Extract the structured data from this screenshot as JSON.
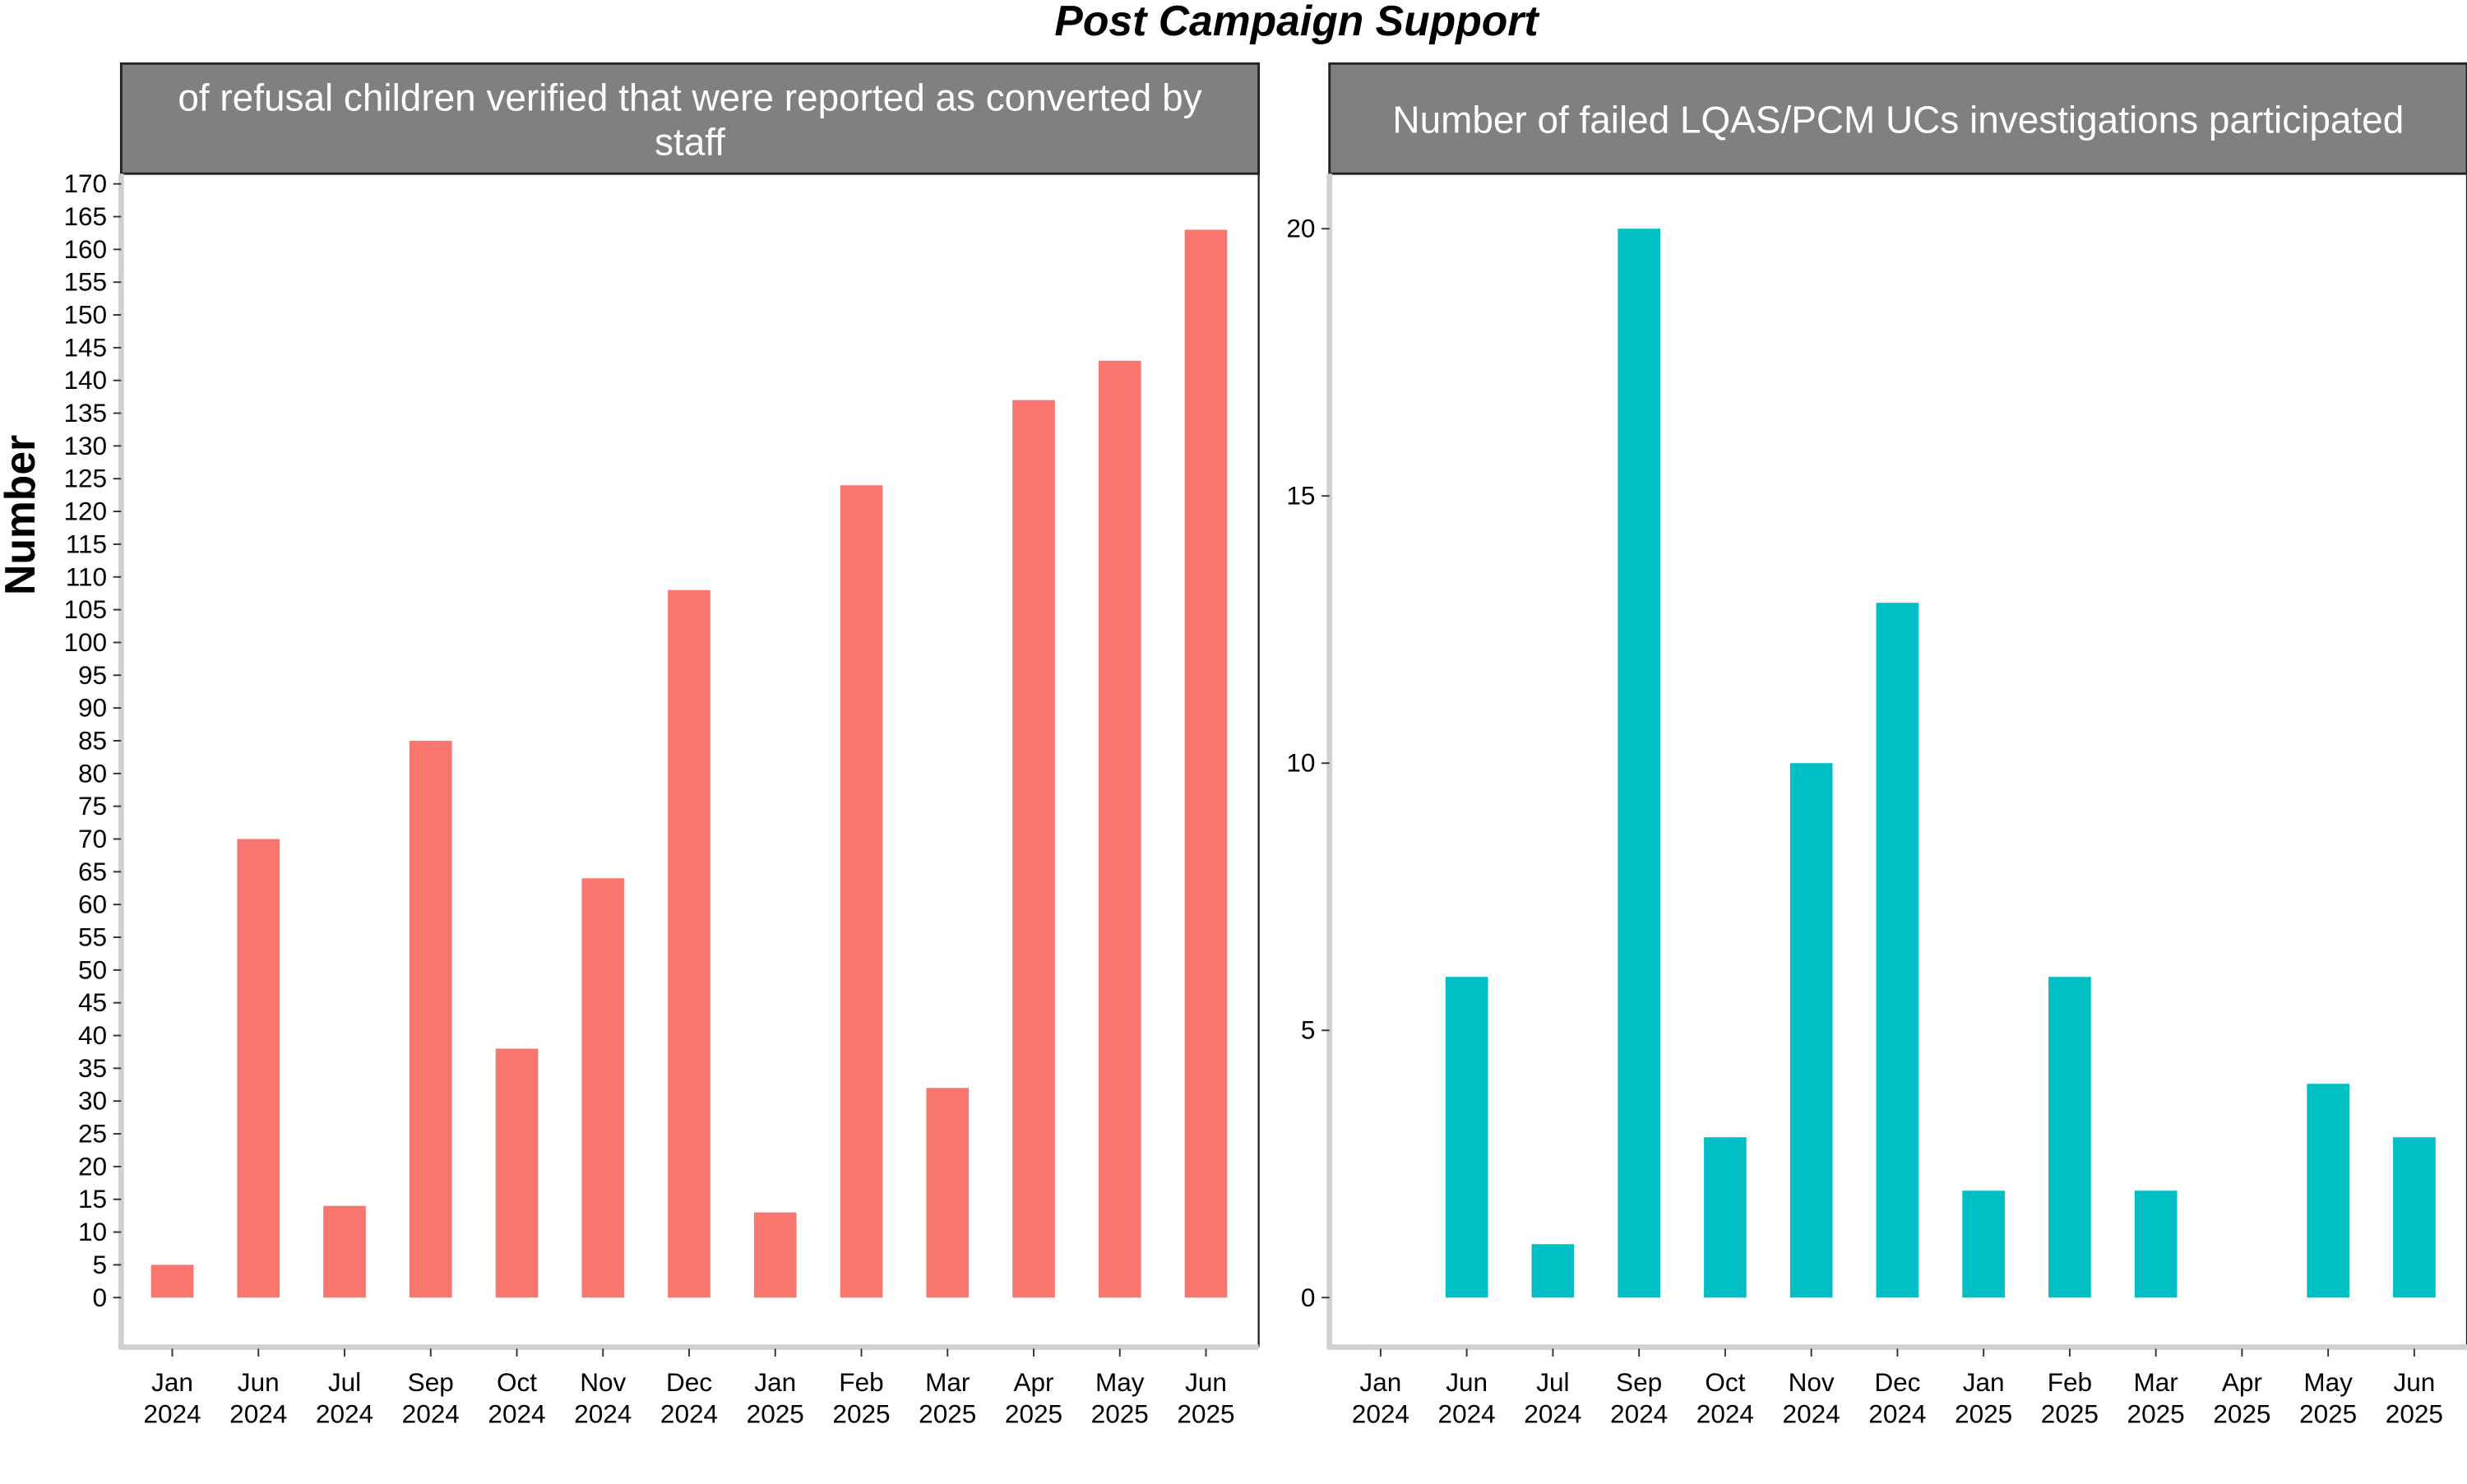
{
  "title": "Post Campaign Support",
  "ylabel": "Number",
  "colors": {
    "left_bars": "#F8766D",
    "right_bars": "#00BFC4",
    "strip_fill": "#808080",
    "strip_text": "#ffffff",
    "axis": "#d0d0d0"
  },
  "chart_data": [
    {
      "type": "bar",
      "panel_title": "of refusal children verified that were reported as converted by staff",
      "panel_title_lines": [
        "of refusal children verified that were reported as converted by",
        "staff"
      ],
      "categories": [
        "Jan 2024",
        "Jun 2024",
        "Jul 2024",
        "Sep 2024",
        "Oct 2024",
        "Nov 2024",
        "Dec 2024",
        "Jan 2025",
        "Feb 2025",
        "Mar 2025",
        "Apr 2025",
        "May 2025",
        "Jun 2025"
      ],
      "values": [
        5,
        70,
        14,
        85,
        38,
        64,
        108,
        13,
        124,
        32,
        137,
        143,
        163
      ],
      "ylim": [
        0,
        170
      ],
      "yticks": [
        0,
        5,
        10,
        15,
        20,
        25,
        30,
        35,
        40,
        45,
        50,
        55,
        60,
        65,
        70,
        75,
        80,
        85,
        90,
        95,
        100,
        105,
        110,
        115,
        120,
        125,
        130,
        135,
        140,
        145,
        150,
        155,
        160,
        165,
        170
      ],
      "grid": false
    },
    {
      "type": "bar",
      "panel_title": "Number of failed LQAS/PCM UCs investigations participated",
      "panel_title_lines": [
        "Number of failed LQAS/PCM UCs investigations participated"
      ],
      "categories": [
        "Jan 2024",
        "Jun 2024",
        "Jul 2024",
        "Sep 2024",
        "Oct 2024",
        "Nov 2024",
        "Dec 2024",
        "Jan 2025",
        "Feb 2025",
        "Mar 2025",
        "Apr 2025",
        "May 2025",
        "Jun 2025"
      ],
      "values": [
        0,
        6,
        1,
        20,
        3,
        10,
        13,
        2,
        6,
        2,
        0,
        4,
        3
      ],
      "ylim": [
        0,
        20
      ],
      "yticks": [
        0,
        5,
        10,
        15,
        20
      ],
      "grid": false
    }
  ]
}
